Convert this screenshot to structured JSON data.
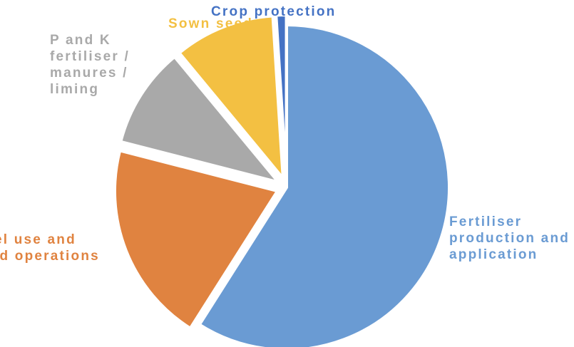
{
  "chart_data": {
    "type": "pie",
    "title": "",
    "legend": "none",
    "slices": [
      {
        "label": "Fertiliser\nproduction and\napplication",
        "value": 59,
        "color": "#6a9bd3",
        "explode": 0
      },
      {
        "label": "el use and\nld operations",
        "value": 20,
        "color": "#e08340",
        "explode": 1
      },
      {
        "label": "P and K\nfertiliser /\nmanures /\nliming",
        "value": 10,
        "color": "#a9a9a9",
        "explode": 1
      },
      {
        "label": "Sown seeds",
        "value": 10,
        "color": "#f3c042",
        "explode": 1
      },
      {
        "label": "Crop protection",
        "value": 1,
        "color": "#4472c4",
        "explode": 1
      }
    ]
  }
}
